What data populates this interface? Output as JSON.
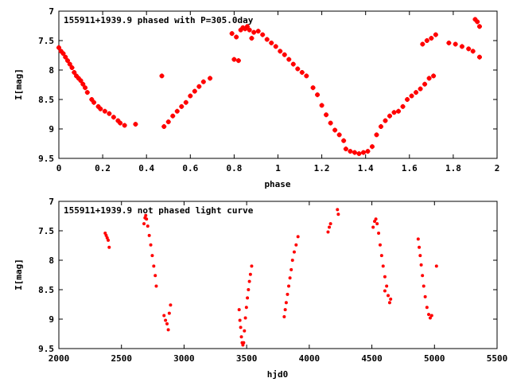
{
  "chart_data": [
    {
      "type": "scatter",
      "title": "155911+1939.9 phased with P=305.0day",
      "xlabel": "phase",
      "ylabel": "I[mag]",
      "xlim": [
        0,
        2
      ],
      "ylim": [
        7,
        9.5
      ],
      "y_inverted": true,
      "xticks": [
        0,
        0.2,
        0.4,
        0.6,
        0.8,
        1,
        1.2,
        1.4,
        1.6,
        1.8,
        2
      ],
      "xtick_labels": [
        "0",
        "0.2",
        "0.4",
        "0.6",
        "0.8",
        "1",
        "1.2",
        "1.4",
        "1.6",
        "1.8",
        "2"
      ],
      "yticks": [
        7,
        7.5,
        8,
        8.5,
        9,
        9.5
      ],
      "ytick_labels": [
        "7",
        "7.5",
        "8",
        "8.5",
        "9",
        "9.5"
      ],
      "grid": false,
      "marker": "plus",
      "color": "#ff0000",
      "points": [
        [
          0.0,
          7.62
        ],
        [
          0.01,
          7.68
        ],
        [
          0.02,
          7.72
        ],
        [
          0.03,
          7.78
        ],
        [
          0.04,
          7.84
        ],
        [
          0.05,
          7.9
        ],
        [
          0.06,
          7.96
        ],
        [
          0.07,
          8.04
        ],
        [
          0.08,
          8.1
        ],
        [
          0.09,
          8.14
        ],
        [
          0.1,
          8.18
        ],
        [
          0.11,
          8.24
        ],
        [
          0.12,
          8.3
        ],
        [
          0.13,
          8.38
        ],
        [
          0.15,
          8.5
        ],
        [
          0.16,
          8.55
        ],
        [
          0.18,
          8.62
        ],
        [
          0.19,
          8.66
        ],
        [
          0.21,
          8.7
        ],
        [
          0.23,
          8.74
        ],
        [
          0.25,
          8.8
        ],
        [
          0.27,
          8.86
        ],
        [
          0.28,
          8.9
        ],
        [
          0.3,
          8.94
        ],
        [
          0.35,
          8.92
        ],
        [
          0.47,
          8.1
        ],
        [
          0.48,
          8.96
        ],
        [
          0.5,
          8.88
        ],
        [
          0.52,
          8.78
        ],
        [
          0.54,
          8.7
        ],
        [
          0.56,
          8.62
        ],
        [
          0.58,
          8.55
        ],
        [
          0.6,
          8.44
        ],
        [
          0.62,
          8.36
        ],
        [
          0.64,
          8.28
        ],
        [
          0.66,
          8.2
        ],
        [
          0.69,
          8.14
        ],
        [
          0.79,
          7.38
        ],
        [
          0.8,
          7.82
        ],
        [
          0.81,
          7.44
        ],
        [
          0.82,
          7.84
        ],
        [
          0.83,
          7.32
        ],
        [
          0.84,
          7.28
        ],
        [
          0.85,
          7.3
        ],
        [
          0.86,
          7.26
        ],
        [
          0.87,
          7.32
        ],
        [
          0.88,
          7.46
        ],
        [
          0.89,
          7.36
        ],
        [
          0.91,
          7.34
        ],
        [
          0.93,
          7.4
        ],
        [
          0.95,
          7.48
        ],
        [
          0.97,
          7.54
        ],
        [
          0.99,
          7.6
        ],
        [
          1.01,
          7.68
        ],
        [
          1.03,
          7.74
        ],
        [
          1.05,
          7.82
        ],
        [
          1.07,
          7.9
        ],
        [
          1.09,
          7.98
        ],
        [
          1.11,
          8.04
        ],
        [
          1.13,
          8.1
        ],
        [
          1.16,
          8.3
        ],
        [
          1.18,
          8.42
        ],
        [
          1.2,
          8.6
        ],
        [
          1.22,
          8.76
        ],
        [
          1.24,
          8.9
        ],
        [
          1.26,
          9.02
        ],
        [
          1.28,
          9.1
        ],
        [
          1.3,
          9.2
        ],
        [
          1.31,
          9.34
        ],
        [
          1.33,
          9.38
        ],
        [
          1.35,
          9.4
        ],
        [
          1.37,
          9.42
        ],
        [
          1.39,
          9.4
        ],
        [
          1.41,
          9.38
        ],
        [
          1.43,
          9.3
        ],
        [
          1.45,
          9.1
        ],
        [
          1.47,
          8.96
        ],
        [
          1.49,
          8.86
        ],
        [
          1.51,
          8.78
        ],
        [
          1.53,
          8.72
        ],
        [
          1.55,
          8.7
        ],
        [
          1.57,
          8.62
        ],
        [
          1.59,
          8.5
        ],
        [
          1.61,
          8.44
        ],
        [
          1.63,
          8.38
        ],
        [
          1.65,
          8.32
        ],
        [
          1.67,
          8.24
        ],
        [
          1.69,
          8.14
        ],
        [
          1.71,
          8.1
        ],
        [
          1.66,
          7.56
        ],
        [
          1.68,
          7.5
        ],
        [
          1.7,
          7.46
        ],
        [
          1.72,
          7.4
        ],
        [
          1.78,
          7.54
        ],
        [
          1.81,
          7.56
        ],
        [
          1.84,
          7.6
        ],
        [
          1.87,
          7.64
        ],
        [
          1.89,
          7.68
        ],
        [
          1.9,
          7.14
        ],
        [
          1.91,
          7.18
        ],
        [
          1.92,
          7.26
        ],
        [
          1.92,
          7.78
        ]
      ]
    },
    {
      "type": "scatter",
      "title": "155911+1939.9 not phased light curve",
      "xlabel": "hjd0",
      "ylabel": "I[mag]",
      "xlim": [
        2000,
        5500
      ],
      "ylim": [
        7,
        9.5
      ],
      "y_inverted": true,
      "xticks": [
        2000,
        2500,
        3000,
        3500,
        4000,
        4500,
        5000,
        5500
      ],
      "xtick_labels": [
        "2000",
        "2500",
        "3000",
        "3500",
        "4000",
        "4500",
        "5000",
        "5500"
      ],
      "yticks": [
        7,
        7.5,
        8,
        8.5,
        9,
        9.5
      ],
      "ytick_labels": [
        "7",
        "7.5",
        "8",
        "8.5",
        "9",
        "9.5"
      ],
      "grid": false,
      "marker": "dot",
      "color": "#ff0000",
      "points": [
        [
          2370,
          7.54
        ],
        [
          2378,
          7.58
        ],
        [
          2386,
          7.62
        ],
        [
          2394,
          7.66
        ],
        [
          2402,
          7.78
        ],
        [
          2680,
          7.38
        ],
        [
          2688,
          7.28
        ],
        [
          2694,
          7.24
        ],
        [
          2700,
          7.3
        ],
        [
          2710,
          7.42
        ],
        [
          2722,
          7.58
        ],
        [
          2734,
          7.74
        ],
        [
          2746,
          7.92
        ],
        [
          2758,
          8.1
        ],
        [
          2770,
          8.26
        ],
        [
          2778,
          8.44
        ],
        [
          2840,
          8.94
        ],
        [
          2852,
          9.02
        ],
        [
          2864,
          9.08
        ],
        [
          2874,
          9.18
        ],
        [
          2882,
          8.9
        ],
        [
          2892,
          8.76
        ],
        [
          3440,
          8.84
        ],
        [
          3446,
          9.02
        ],
        [
          3452,
          9.14
        ],
        [
          3458,
          9.3
        ],
        [
          3464,
          9.4
        ],
        [
          3470,
          9.44
        ],
        [
          3476,
          9.4
        ],
        [
          3482,
          9.2
        ],
        [
          3490,
          8.98
        ],
        [
          3498,
          8.8
        ],
        [
          3506,
          8.64
        ],
        [
          3514,
          8.5
        ],
        [
          3522,
          8.36
        ],
        [
          3530,
          8.24
        ],
        [
          3540,
          8.1
        ],
        [
          3800,
          8.96
        ],
        [
          3808,
          8.84
        ],
        [
          3816,
          8.72
        ],
        [
          3826,
          8.58
        ],
        [
          3836,
          8.44
        ],
        [
          3846,
          8.3
        ],
        [
          3856,
          8.16
        ],
        [
          3866,
          8.0
        ],
        [
          3880,
          7.86
        ],
        [
          3895,
          7.74
        ],
        [
          3910,
          7.6
        ],
        [
          4150,
          7.52
        ],
        [
          4160,
          7.44
        ],
        [
          4170,
          7.38
        ],
        [
          4225,
          7.14
        ],
        [
          4232,
          7.22
        ],
        [
          4510,
          7.44
        ],
        [
          4522,
          7.34
        ],
        [
          4532,
          7.3
        ],
        [
          4542,
          7.38
        ],
        [
          4554,
          7.54
        ],
        [
          4566,
          7.74
        ],
        [
          4578,
          7.92
        ],
        [
          4590,
          8.1
        ],
        [
          4604,
          8.28
        ],
        [
          4618,
          8.44
        ],
        [
          4630,
          8.6
        ],
        [
          4642,
          8.72
        ],
        [
          4650,
          8.66
        ],
        [
          4604,
          8.52
        ],
        [
          4870,
          7.64
        ],
        [
          4878,
          7.78
        ],
        [
          4886,
          7.92
        ],
        [
          4894,
          8.08
        ],
        [
          4904,
          8.26
        ],
        [
          4914,
          8.44
        ],
        [
          4926,
          8.62
        ],
        [
          4940,
          8.8
        ],
        [
          4954,
          8.92
        ],
        [
          4966,
          8.98
        ],
        [
          4978,
          8.94
        ],
        [
          5016,
          8.1
        ]
      ]
    }
  ]
}
